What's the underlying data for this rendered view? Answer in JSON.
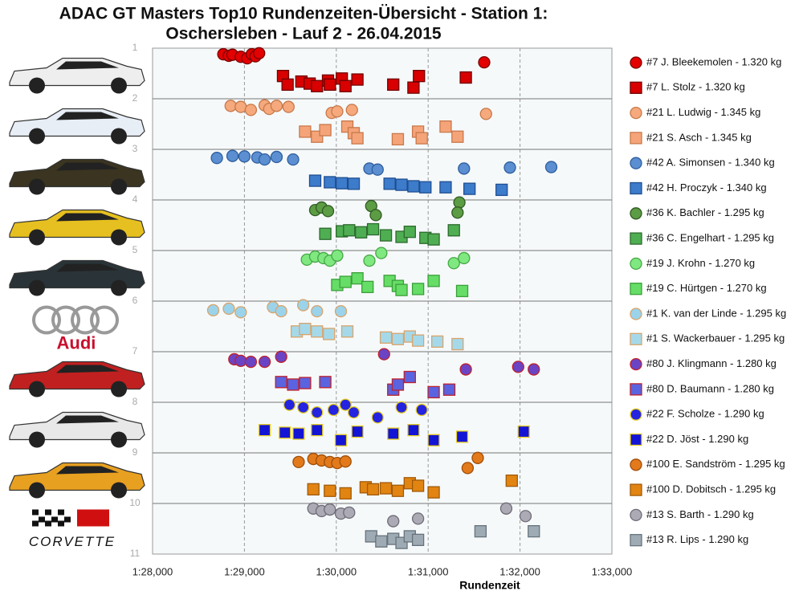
{
  "chart_data": {
    "type": "scatter",
    "title": "ADAC GT Masters Top10 Rundenzeiten-Übersicht - Station 1:",
    "subtitle": "Oschersleben - Lauf 2 - 26.04.2015",
    "x_label": "Rundenzeit",
    "image_texts": [
      "Audi",
      "CORVETTE"
    ],
    "xlim": [
      88,
      93
    ],
    "xticks": [
      {
        "value": 88,
        "label": "1:28,000"
      },
      {
        "value": 89,
        "label": "1:29,000"
      },
      {
        "value": 90,
        "label": "1:30,000"
      },
      {
        "value": 91,
        "label": "1:31,000"
      },
      {
        "value": 92,
        "label": "1:32,000"
      },
      {
        "value": 93,
        "label": "1:33,000"
      }
    ],
    "ylim": [
      1,
      11
    ],
    "y_inverted": true,
    "yticks": [
      1,
      2,
      3,
      4,
      5,
      6,
      7,
      8,
      9,
      10,
      11
    ],
    "grid": true,
    "legend": "right",
    "series": [
      {
        "name": "#7 J. Bleekemolen - 1.320 kg",
        "marker": "circle",
        "color": "#e30000",
        "edgecolor": "#7a0000",
        "x": [
          88.77,
          88.83,
          88.87,
          88.96,
          89.03,
          89.08,
          89.12,
          89.16,
          91.61
        ],
        "y": [
          1.12,
          1.15,
          1.13,
          1.17,
          1.2,
          1.12,
          1.16,
          1.1,
          1.28
        ]
      },
      {
        "name": "#7 L. Stolz - 1.320 kg",
        "marker": "square",
        "color": "#d80000",
        "edgecolor": "#700000",
        "x": [
          89.42,
          89.47,
          89.62,
          89.71,
          89.79,
          89.91,
          89.93,
          90.06,
          90.1,
          90.23,
          90.62,
          90.84,
          90.9,
          91.41
        ],
        "y": [
          1.55,
          1.72,
          1.66,
          1.7,
          1.75,
          1.64,
          1.72,
          1.6,
          1.75,
          1.62,
          1.72,
          1.78,
          1.55,
          1.58
        ]
      },
      {
        "name": "#21 L. Ludwig - 1.345 kg",
        "marker": "circle",
        "color": "#f5a97c",
        "edgecolor": "#c7794a",
        "x": [
          88.85,
          88.96,
          89.07,
          89.22,
          89.27,
          89.35,
          89.48,
          89.95,
          90.01,
          90.17,
          91.63
        ],
        "y": [
          2.14,
          2.16,
          2.22,
          2.13,
          2.2,
          2.14,
          2.16,
          2.28,
          2.25,
          2.22,
          2.3
        ]
      },
      {
        "name": "#21 S. Asch - 1.345 kg",
        "marker": "square",
        "color": "#f5a47a",
        "edgecolor": "#c7794a",
        "x": [
          89.66,
          89.79,
          89.88,
          90.12,
          90.19,
          90.23,
          90.67,
          90.89,
          90.93,
          91.19,
          91.32
        ],
        "y": [
          2.65,
          2.75,
          2.62,
          2.55,
          2.68,
          2.78,
          2.8,
          2.65,
          2.78,
          2.55,
          2.75
        ]
      },
      {
        "name": "#42 A. Simonsen - 1.340 kg",
        "marker": "circle",
        "color": "#5b8fd2",
        "edgecolor": "#2f5e9e",
        "x": [
          88.7,
          88.87,
          89.0,
          89.14,
          89.22,
          89.35,
          89.53,
          90.36,
          90.45,
          91.39,
          91.89,
          92.34
        ],
        "y": [
          3.17,
          3.13,
          3.14,
          3.16,
          3.2,
          3.15,
          3.2,
          3.38,
          3.4,
          3.38,
          3.36,
          3.35
        ]
      },
      {
        "name": "#42 H. Proczyk - 1.340 kg",
        "marker": "square",
        "color": "#3d7bcb",
        "edgecolor": "#1f4f90",
        "x": [
          89.77,
          89.93,
          90.06,
          90.19,
          90.58,
          90.71,
          90.84,
          90.97,
          91.19,
          91.45,
          91.8
        ],
        "y": [
          3.62,
          3.65,
          3.67,
          3.68,
          3.68,
          3.7,
          3.73,
          3.75,
          3.75,
          3.78,
          3.8
        ]
      },
      {
        "name": "#36 K. Bachler - 1.295 kg",
        "marker": "circle",
        "color": "#5c9c44",
        "edgecolor": "#2f5a22",
        "x": [
          89.77,
          89.84,
          89.91,
          90.38,
          90.43,
          91.34,
          91.32
        ],
        "y": [
          4.2,
          4.15,
          4.22,
          4.12,
          4.3,
          4.05,
          4.25
        ]
      },
      {
        "name": "#36 C. Engelhart - 1.295 kg",
        "marker": "square",
        "color": "#4fae52",
        "edgecolor": "#2c6a2e",
        "x": [
          89.88,
          90.06,
          90.14,
          90.27,
          90.4,
          90.54,
          90.71,
          90.8,
          90.97,
          91.06,
          91.28
        ],
        "y": [
          4.67,
          4.62,
          4.6,
          4.64,
          4.58,
          4.7,
          4.73,
          4.63,
          4.75,
          4.78,
          4.6
        ]
      },
      {
        "name": "#19 J. Krohn - 1.270 kg",
        "marker": "circle",
        "color": "#80e880",
        "edgecolor": "#44a844",
        "x": [
          89.68,
          89.77,
          89.86,
          89.93,
          90.01,
          90.36,
          90.49,
          91.28,
          91.39
        ],
        "y": [
          5.18,
          5.12,
          5.15,
          5.2,
          5.1,
          5.2,
          5.05,
          5.25,
          5.15
        ]
      },
      {
        "name": "#19 C. Hürtgen - 1.270 kg",
        "marker": "square",
        "color": "#66dd66",
        "edgecolor": "#3aa03a",
        "x": [
          90.01,
          90.1,
          90.23,
          90.34,
          90.58,
          90.67,
          90.71,
          90.89,
          91.06,
          91.37
        ],
        "y": [
          5.68,
          5.62,
          5.55,
          5.72,
          5.6,
          5.7,
          5.78,
          5.76,
          5.6,
          5.8
        ]
      },
      {
        "name": "#1 K. van der Linde - 1.295 kg",
        "marker": "circle",
        "color": "#9bd3ea",
        "edgecolor": "#d9a46a",
        "x": [
          88.66,
          88.83,
          88.96,
          89.31,
          89.4,
          89.64,
          89.79,
          90.05
        ],
        "y": [
          6.18,
          6.15,
          6.22,
          6.12,
          6.2,
          6.08,
          6.2,
          6.2
        ]
      },
      {
        "name": "#1 S. Wackerbauer - 1.295 kg",
        "marker": "square",
        "color": "#a5d9ea",
        "edgecolor": "#d9a46a",
        "x": [
          89.57,
          89.66,
          89.79,
          89.92,
          90.12,
          90.54,
          90.67,
          90.8,
          90.89,
          91.1,
          91.32
        ],
        "y": [
          6.6,
          6.55,
          6.6,
          6.65,
          6.6,
          6.72,
          6.75,
          6.7,
          6.78,
          6.8,
          6.85
        ]
      },
      {
        "name": "#80 J. Klingmann - 1.280 kg",
        "marker": "circle",
        "color": "#6a44c4",
        "edgecolor": "#c0202a",
        "x": [
          88.89,
          88.96,
          89.07,
          89.22,
          89.4,
          90.52,
          91.41,
          91.98,
          92.15
        ],
        "y": [
          7.15,
          7.18,
          7.2,
          7.2,
          7.1,
          7.05,
          7.35,
          7.3,
          7.35
        ]
      },
      {
        "name": "#80 D. Baumann - 1.280 kg",
        "marker": "square",
        "color": "#5a63e0",
        "edgecolor": "#c0202a",
        "x": [
          89.4,
          89.53,
          89.66,
          89.88,
          90.62,
          90.67,
          90.8,
          91.06,
          91.23
        ],
        "y": [
          7.6,
          7.65,
          7.62,
          7.6,
          7.75,
          7.65,
          7.5,
          7.8,
          7.75
        ]
      },
      {
        "name": "#22 F. Scholze - 1.290 kg",
        "marker": "circle",
        "color": "#2424e0",
        "edgecolor": "#e8d020",
        "x": [
          89.49,
          89.64,
          89.79,
          89.97,
          90.1,
          90.19,
          90.45,
          90.71,
          90.93
        ],
        "y": [
          8.05,
          8.1,
          8.2,
          8.15,
          8.05,
          8.2,
          8.3,
          8.1,
          8.15
        ]
      },
      {
        "name": "#22 D. Jöst - 1.290 kg",
        "marker": "square",
        "color": "#1414d4",
        "edgecolor": "#e8d020",
        "x": [
          89.22,
          89.44,
          89.59,
          89.79,
          90.05,
          90.23,
          90.62,
          90.84,
          91.06,
          91.37,
          92.04
        ],
        "y": [
          8.55,
          8.6,
          8.62,
          8.55,
          8.75,
          8.58,
          8.62,
          8.55,
          8.75,
          8.68,
          8.58
        ]
      },
      {
        "name": "#100 E. Sandström - 1.295 kg",
        "marker": "circle",
        "color": "#e27a1c",
        "edgecolor": "#a04d08",
        "x": [
          89.59,
          89.75,
          89.84,
          89.93,
          90.01,
          90.1,
          91.54,
          91.43
        ],
        "y": [
          9.18,
          9.12,
          9.15,
          9.18,
          9.2,
          9.17,
          9.1,
          9.3
        ]
      },
      {
        "name": "#100 D. Dobitsch - 1.295 kg",
        "marker": "square",
        "color": "#e28412",
        "edgecolor": "#a05a08",
        "x": [
          89.75,
          89.93,
          90.1,
          90.32,
          90.4,
          90.54,
          90.67,
          90.8,
          90.89,
          91.06,
          91.91
        ],
        "y": [
          9.72,
          9.75,
          9.8,
          9.68,
          9.72,
          9.7,
          9.75,
          9.6,
          9.65,
          9.78,
          9.55
        ]
      },
      {
        "name": "#13 S. Barth - 1.290 kg",
        "marker": "circle",
        "color": "#acaab4",
        "edgecolor": "#6e6c78",
        "x": [
          89.75,
          89.84,
          89.93,
          90.05,
          90.14,
          90.62,
          90.89,
          91.85,
          92.06
        ],
        "y": [
          10.1,
          10.15,
          10.12,
          10.2,
          10.18,
          10.35,
          10.3,
          10.1,
          10.25
        ]
      },
      {
        "name": "#13 R. Lips - 1.290 kg",
        "marker": "square",
        "color": "#9eabb4",
        "edgecolor": "#66737c",
        "x": [
          90.38,
          90.49,
          90.62,
          90.71,
          90.8,
          90.89,
          91.57,
          92.15
        ],
        "y": [
          10.65,
          10.75,
          10.7,
          10.78,
          10.65,
          10.72,
          10.55,
          10.55
        ]
      }
    ]
  }
}
